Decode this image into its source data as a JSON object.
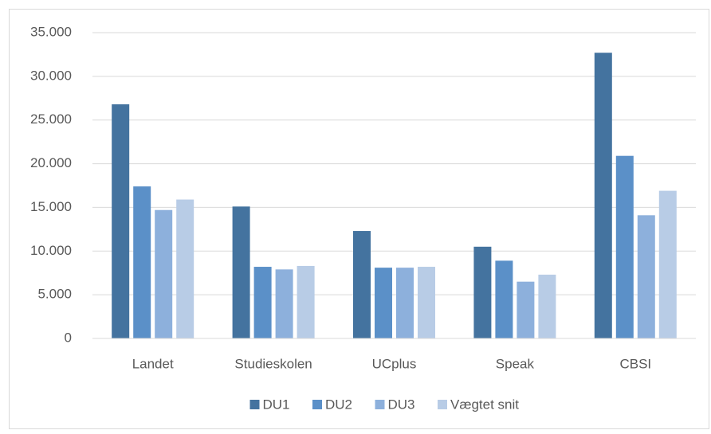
{
  "chart_data": {
    "type": "bar",
    "categories": [
      "Landet",
      "Studieskolen",
      "UCplus",
      "Speak",
      "CBSI"
    ],
    "series": [
      {
        "name": "DU1",
        "color": "#44739f",
        "values": [
          26800,
          15100,
          12300,
          10500,
          32700
        ]
      },
      {
        "name": "DU2",
        "color": "#5b90c8",
        "values": [
          17400,
          8200,
          8100,
          8900,
          20900
        ]
      },
      {
        "name": "DU3",
        "color": "#8db0dc",
        "values": [
          14700,
          7900,
          8100,
          6500,
          14100
        ]
      },
      {
        "name": "Vægtet snit",
        "color": "#b8cce6",
        "values": [
          15900,
          8300,
          8200,
          7300,
          16900
        ]
      }
    ],
    "ylim": [
      0,
      35000
    ],
    "yticks": [
      0,
      {
        "value": 5000,
        "label": "5.000"
      },
      {
        "value": 10000,
        "label": "10.000"
      },
      {
        "value": 15000,
        "label": "15.000"
      },
      {
        "value": 20000,
        "label": "20.000"
      },
      {
        "value": 25000,
        "label": "25.000"
      },
      {
        "value": 30000,
        "label": "30.000"
      },
      {
        "value": 35000,
        "label": "35.000"
      }
    ],
    "grid": true,
    "legend": "bottom"
  }
}
